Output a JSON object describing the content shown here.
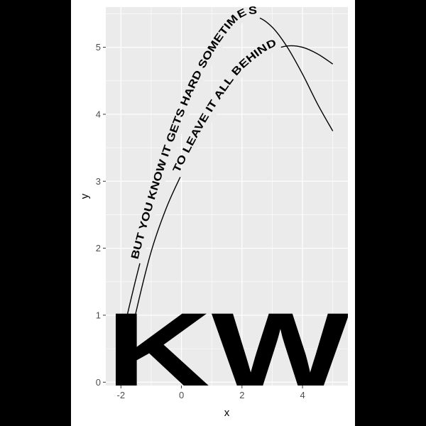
{
  "chart_data": {
    "type": "line",
    "title": "",
    "xlabel": "x",
    "ylabel": "y",
    "xlim": [
      -2.5,
      5.5
    ],
    "ylim": [
      -0.05,
      5.6
    ],
    "x_ticks": [
      -2,
      0,
      2,
      4
    ],
    "y_ticks": [
      0,
      1,
      2,
      3,
      4,
      5
    ],
    "grid": true,
    "series": [
      {
        "text": "BUT YOU KNOW IT GETS HARD SOMETIMES",
        "x": [
          -2.0,
          -1.5,
          -1.0,
          -0.5,
          0.0,
          0.5,
          1.0,
          1.5,
          2.0,
          2.5,
          3.0,
          3.5,
          4.0,
          4.5,
          5.0
        ],
        "y": [
          0.6,
          1.55,
          2.4,
          3.15,
          3.8,
          4.35,
          4.8,
          5.15,
          5.4,
          5.45,
          5.3,
          5.0,
          4.6,
          4.15,
          3.75
        ],
        "label_span": [
          -1.35,
          2.5
        ]
      },
      {
        "text": "TO LEAVE IT ALL BEHIND",
        "x": [
          -2.0,
          -1.5,
          -1.0,
          -0.5,
          0.0,
          0.5,
          1.0,
          1.5,
          2.0,
          2.5,
          3.0,
          3.5,
          4.0,
          4.5,
          5.0
        ],
        "y": [
          0.0,
          1.05,
          1.95,
          2.6,
          3.1,
          3.55,
          3.95,
          4.3,
          4.6,
          4.8,
          4.95,
          5.02,
          5.0,
          4.9,
          4.75
        ],
        "label_span": [
          0.0,
          3.2
        ]
      }
    ],
    "background_text": "SKW"
  }
}
